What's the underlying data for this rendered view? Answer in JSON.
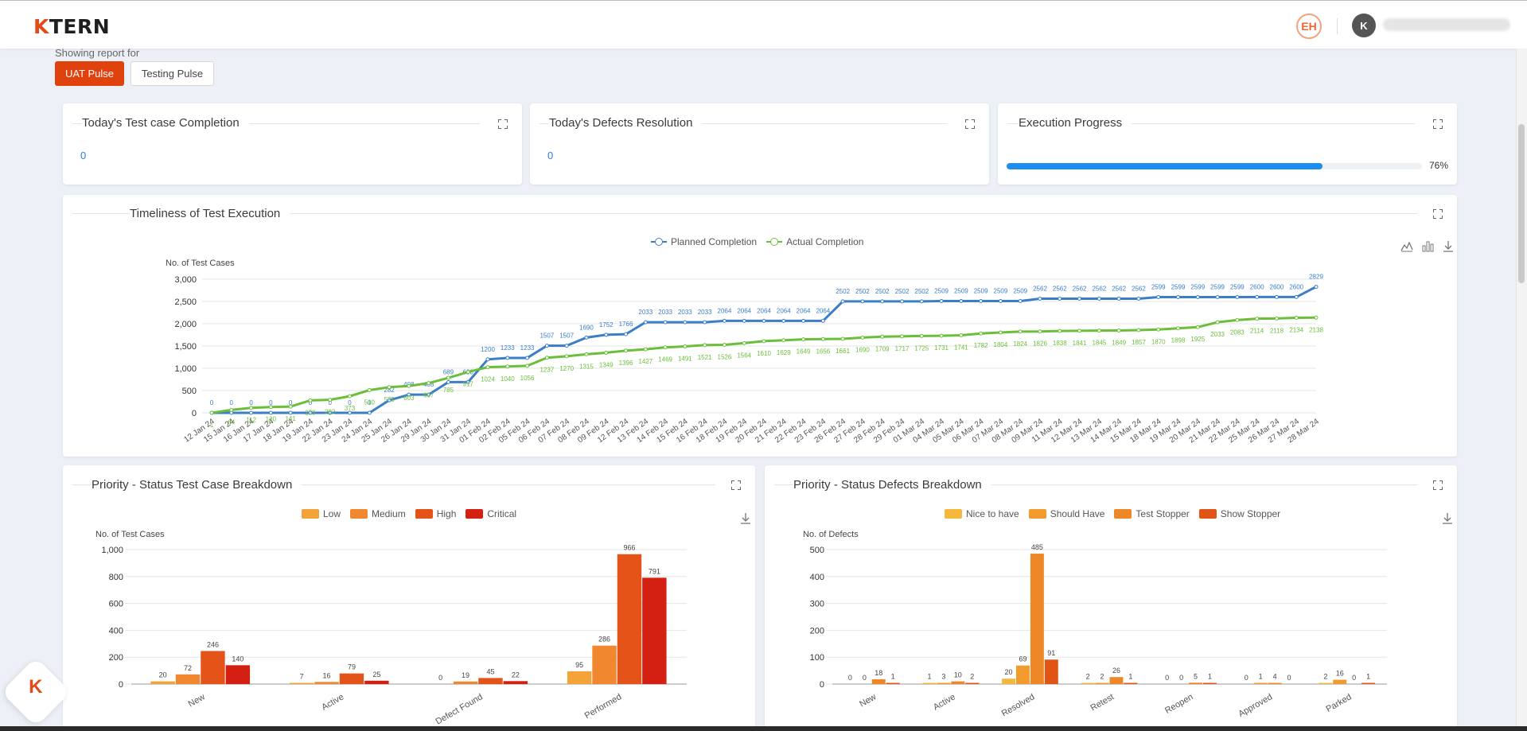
{
  "header": {
    "logo_text": "TERN",
    "logo_mark": "K",
    "client_logo": "EH",
    "avatar_initial": "K"
  },
  "report": {
    "label": "Showing report for",
    "tabs": [
      "UAT Pulse",
      "Testing Pulse"
    ]
  },
  "cards": {
    "test_case_completion": {
      "title": "Today's Test case Completion",
      "value": "0"
    },
    "defects_resolution": {
      "title": "Today's Defects Resolution",
      "value": "0"
    },
    "execution_progress": {
      "title": "Execution Progress",
      "value": 76,
      "label": "76%"
    }
  },
  "timeliness": {
    "title": "Timeliness of Test Execution",
    "legend": [
      "Planned Completion",
      "Actual Completion"
    ],
    "chart_data": {
      "type": "line",
      "ylabel": "No. of Test Cases",
      "ylim": [
        0,
        3000
      ],
      "yticks": [
        0,
        500,
        1000,
        1500,
        2000,
        2500,
        3000
      ],
      "yticks_labels": [
        "0",
        "500",
        "1,000",
        "1,500",
        "2,000",
        "2,500",
        "3,000"
      ],
      "categories": [
        "12 Jan 24",
        "15 Jan 24",
        "16 Jan 24",
        "17 Jan 24",
        "18 Jan 24",
        "19 Jan 24",
        "22 Jan 24",
        "23 Jan 24",
        "24 Jan 24",
        "25 Jan 24",
        "26 Jan 24",
        "29 Jan 24",
        "30 Jan 24",
        "31 Jan 24",
        "01 Feb 24",
        "02 Feb 24",
        "05 Feb 24",
        "06 Feb 24",
        "07 Feb 24",
        "08 Feb 24",
        "09 Feb 24",
        "12 Feb 24",
        "13 Feb 24",
        "14 Feb 24",
        "15 Feb 24",
        "16 Feb 24",
        "18 Feb 24",
        "19 Feb 24",
        "20 Feb 24",
        "21 Feb 24",
        "22 Feb 24",
        "23 Feb 24",
        "26 Feb 24",
        "27 Feb 24",
        "28 Feb 24",
        "29 Feb 24",
        "01 Mar 24",
        "04 Mar 24",
        "05 Mar 24",
        "06 Mar 24",
        "07 Mar 24",
        "08 Mar 24",
        "09 Mar 24",
        "11 Mar 24",
        "12 Mar 24",
        "13 Mar 24",
        "14 Mar 24",
        "15 Mar 24",
        "18 Mar 24",
        "19 Mar 24",
        "20 Mar 24",
        "21 Mar 24",
        "22 Mar 24",
        "25 Mar 24",
        "26 Mar 24",
        "27 Mar 24",
        "28 Mar 24"
      ],
      "series": [
        {
          "name": "Planned Completion",
          "color": "#3a7dc9",
          "values": [
            0,
            0,
            0,
            0,
            0,
            0,
            0,
            0,
            0,
            282,
            408,
            408,
            689,
            690,
            1200,
            1233,
            1233,
            1507,
            1507,
            1690,
            1752,
            1766,
            2033,
            2033,
            2033,
            2033,
            2064,
            2064,
            2064,
            2064,
            2064,
            2064,
            2502,
            2502,
            2502,
            2502,
            2502,
            2509,
            2509,
            2509,
            2509,
            2509,
            2562,
            2562,
            2562,
            2562,
            2562,
            2562,
            2599,
            2599,
            2599,
            2599,
            2599,
            2600,
            2600,
            2600,
            2829
          ]
        },
        {
          "name": "Actual Completion",
          "color": "#6bbe3a",
          "values": [
            1,
            64,
            112,
            130,
            141,
            279,
            292,
            373,
            510,
            575,
            603,
            667,
            785,
            917,
            1024,
            1040,
            1056,
            1237,
            1270,
            1315,
            1349,
            1396,
            1427,
            1469,
            1491,
            1521,
            1526,
            1564,
            1610,
            1629,
            1649,
            1656,
            1661,
            1690,
            1709,
            1717,
            1725,
            1731,
            1741,
            1782,
            1804,
            1824,
            1826,
            1838,
            1841,
            1845,
            1849,
            1857,
            1870,
            1898,
            1925,
            2033,
            2083,
            2114,
            2118,
            2134,
            2138
          ]
        }
      ]
    }
  },
  "priority_test_cases": {
    "title": "Priority - Status Test Case Breakdown",
    "chart_data": {
      "type": "bar",
      "ylabel": "No. of Test Cases",
      "ylim": [
        0,
        1000
      ],
      "yticks": [
        0,
        200,
        400,
        600,
        800,
        1000
      ],
      "yticks_labels": [
        "0",
        "200",
        "400",
        "600",
        "800",
        "1,000"
      ],
      "categories": [
        "New",
        "Active",
        "Defect Found",
        "Performed"
      ],
      "series": [
        {
          "name": "Low",
          "color": "#f3a33a",
          "values": [
            20,
            7,
            0,
            95
          ]
        },
        {
          "name": "Medium",
          "color": "#f1882f",
          "values": [
            72,
            16,
            19,
            286
          ]
        },
        {
          "name": "High",
          "color": "#e45318",
          "values": [
            246,
            79,
            45,
            966
          ]
        },
        {
          "name": "Critical",
          "color": "#d41f13",
          "values": [
            140,
            25,
            22,
            791
          ]
        }
      ]
    }
  },
  "priority_defects": {
    "title": "Priority - Status Defects Breakdown",
    "chart_data": {
      "type": "bar",
      "ylabel": "No. of Defects",
      "ylim": [
        0,
        500
      ],
      "yticks": [
        0,
        100,
        200,
        300,
        400,
        500
      ],
      "yticks_labels": [
        "0",
        "100",
        "200",
        "300",
        "400",
        "500"
      ],
      "categories": [
        "New",
        "Active",
        "Resolved",
        "Retest",
        "Reopen",
        "Approved",
        "Parked"
      ],
      "series": [
        {
          "name": "Nice to have",
          "color": "#f5b83d",
          "values": [
            0,
            1,
            20,
            2,
            0,
            0,
            2
          ]
        },
        {
          "name": "Should Have",
          "color": "#f29a2b",
          "values": [
            0,
            3,
            69,
            2,
            0,
            1,
            16
          ]
        },
        {
          "name": "Test Stopper",
          "color": "#ee8728",
          "values": [
            18,
            10,
            485,
            26,
            5,
            4,
            0
          ]
        },
        {
          "name": "Show Stopper",
          "color": "#e05416",
          "values": [
            1,
            2,
            91,
            1,
            1,
            0,
            1
          ]
        }
      ]
    }
  }
}
